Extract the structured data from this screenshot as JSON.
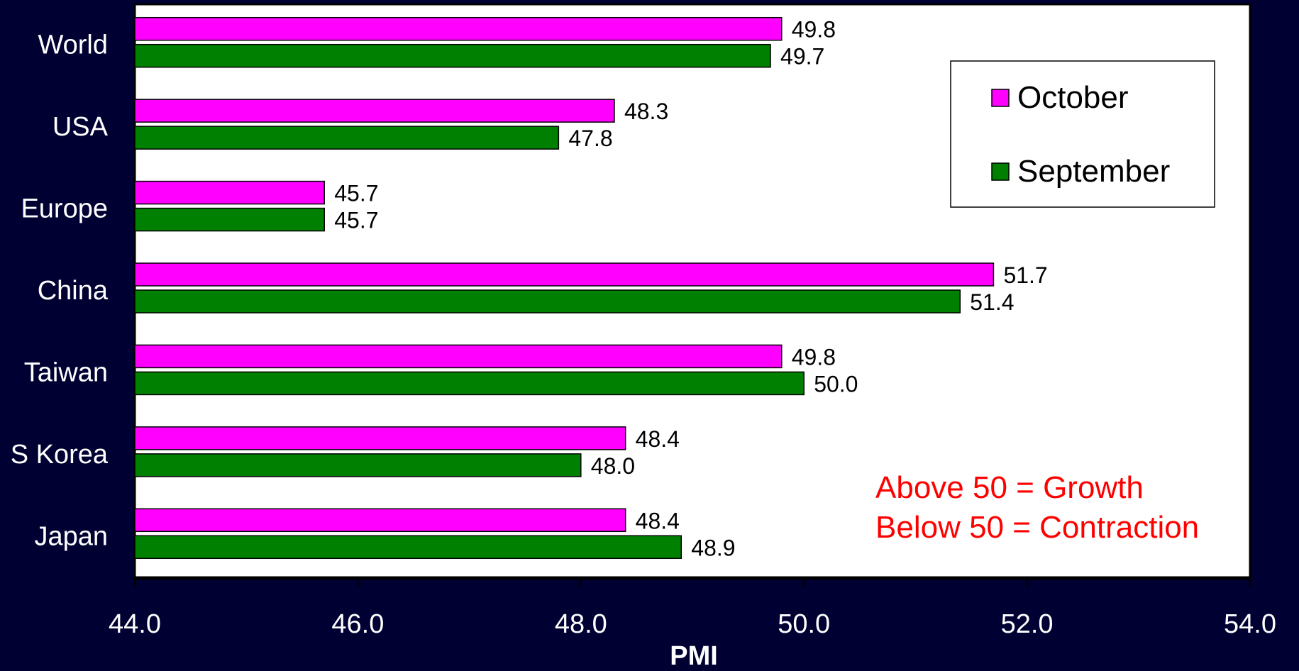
{
  "chart_data": {
    "type": "bar",
    "orientation": "horizontal",
    "categories": [
      "World",
      "USA",
      "Europe",
      "China",
      "Taiwan",
      "S Korea",
      "Japan"
    ],
    "series": [
      {
        "name": "October",
        "values": [
          49.8,
          48.3,
          45.7,
          51.7,
          49.8,
          48.4,
          48.4
        ],
        "labels": [
          "49.8",
          "48.3",
          "45.7",
          "51.7",
          "49.8",
          "48.4",
          "48.4"
        ],
        "color": "#ff00ff"
      },
      {
        "name": "September",
        "values": [
          49.7,
          47.8,
          45.7,
          51.4,
          50.0,
          48.0,
          48.9
        ],
        "labels": [
          "49.7",
          "47.8",
          "45.7",
          "51.4",
          "50.0",
          "48.0",
          "48.9"
        ],
        "color": "#008000"
      }
    ],
    "xlabel": "PMI",
    "xlim": [
      44.0,
      54.0
    ],
    "xticks": [
      "44.0",
      "46.0",
      "48.0",
      "50.0",
      "52.0",
      "54.0"
    ],
    "legend_position": "top-right",
    "grid": false,
    "annotations": [
      "Above 50 = Growth",
      "Below 50 = Contraction"
    ],
    "annotation_color": "#ff0000",
    "plot_background": "#ffffff",
    "page_background": "#000033"
  }
}
